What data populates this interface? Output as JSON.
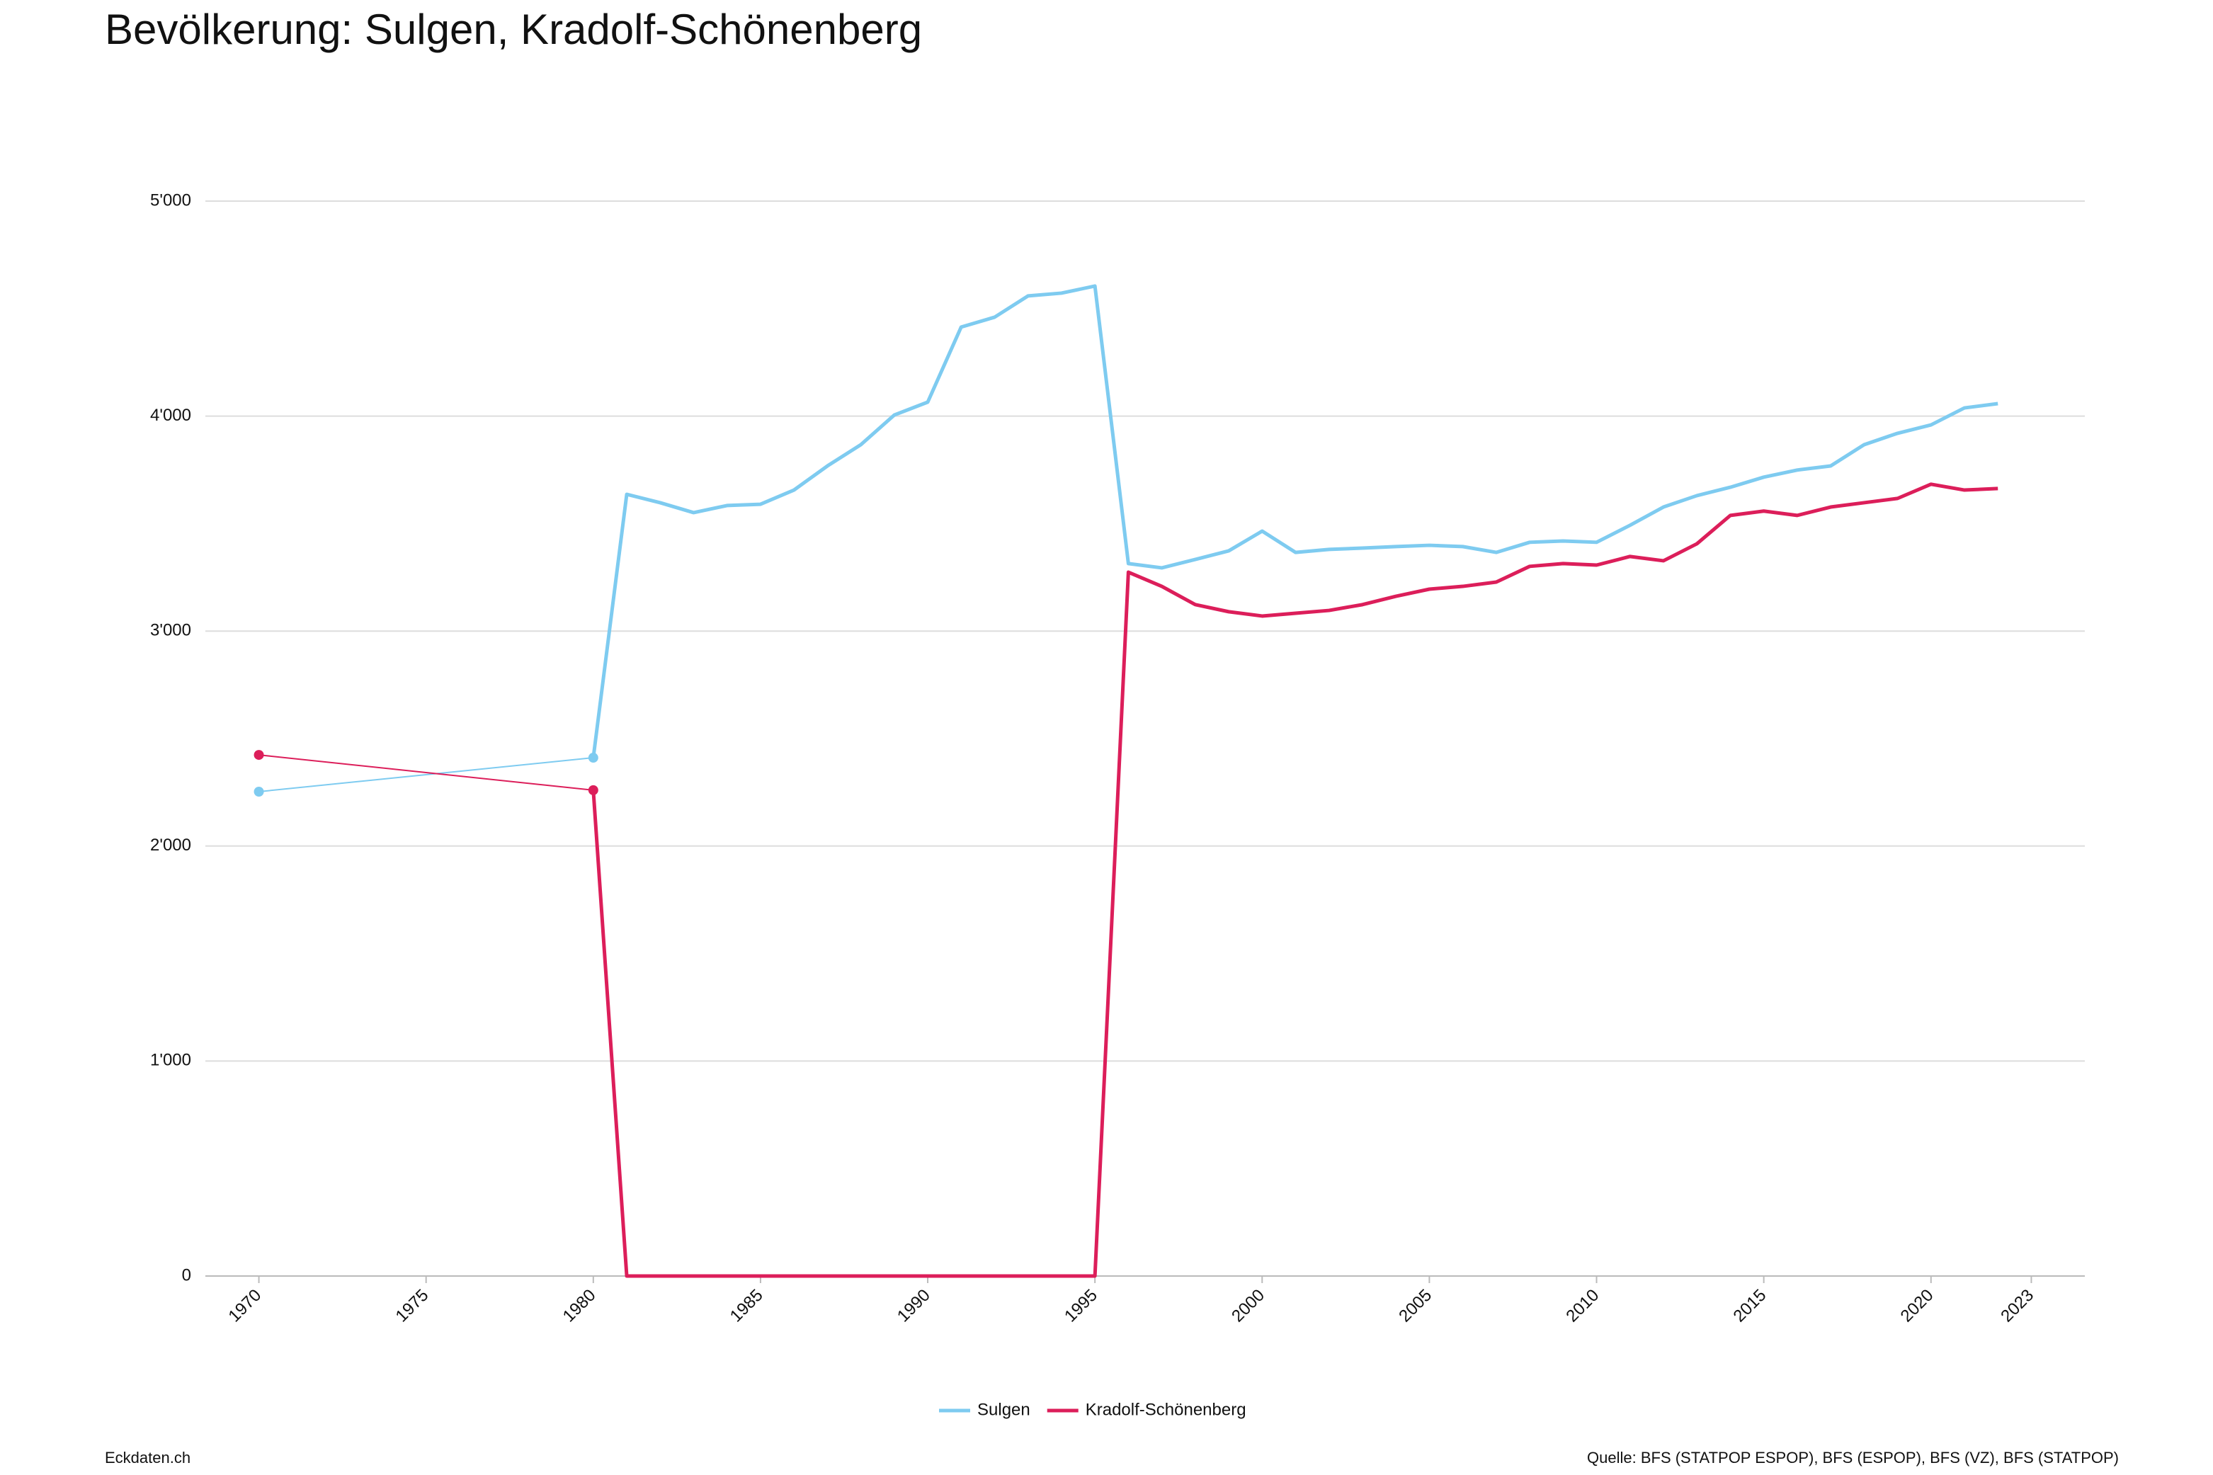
{
  "chart_data": {
    "type": "line",
    "title": "Bevölkerung: Sulgen, Kradolf-Schönenberg",
    "x": [
      1970,
      1980,
      1981,
      1982,
      1983,
      1984,
      1985,
      1986,
      1987,
      1988,
      1989,
      1990,
      1991,
      1992,
      1993,
      1994,
      1995,
      1996,
      1997,
      1998,
      1999,
      2000,
      2001,
      2002,
      2003,
      2004,
      2005,
      2006,
      2007,
      2008,
      2009,
      2010,
      2011,
      2012,
      2013,
      2014,
      2015,
      2016,
      2017,
      2018,
      2019,
      2020,
      2021,
      2022
    ],
    "series": [
      {
        "name": "Sulgen",
        "color": "#7ecbf0",
        "values": [
          2253,
          2411,
          3636,
          3597,
          3551,
          3584,
          3590,
          3656,
          3768,
          3867,
          4005,
          4065,
          4414,
          4460,
          4559,
          4572,
          4605,
          3314,
          3294,
          3333,
          3373,
          3465,
          3366,
          3380,
          3386,
          3393,
          3399,
          3393,
          3366,
          3413,
          3419,
          3413,
          3492,
          3577,
          3630,
          3669,
          3716,
          3749,
          3768,
          3867,
          3920,
          3959,
          4038,
          4058
        ]
      },
      {
        "name": "Kradolf-Schönenberg",
        "color": "#dc1e5a",
        "values": [
          2424,
          2260,
          0,
          0,
          0,
          0,
          0,
          0,
          0,
          0,
          0,
          0,
          0,
          0,
          0,
          0,
          0,
          3274,
          3208,
          3123,
          3090,
          3070,
          3083,
          3096,
          3123,
          3162,
          3195,
          3208,
          3228,
          3301,
          3314,
          3307,
          3347,
          3327,
          3406,
          3538,
          3558,
          3538,
          3577,
          3597,
          3617,
          3683,
          3656,
          3663
        ]
      }
    ],
    "xlim": [
      1968.4,
      2024.6
    ],
    "xticks": [
      1970,
      1975,
      1980,
      1985,
      1990,
      1995,
      2000,
      2005,
      2010,
      2015,
      2020,
      2023
    ],
    "ylim": [
      0,
      5000
    ],
    "yticks": [
      0,
      {
        "value": 1000,
        "label": "1'000"
      },
      {
        "value": 2000,
        "label": "2'000"
      },
      {
        "value": 3000,
        "label": "3'000"
      },
      {
        "value": 4000,
        "label": "4'000"
      },
      {
        "value": 5000,
        "label": "5'000"
      }
    ],
    "grid": true,
    "legend": "bottom",
    "footer": "Eckdaten.ch",
    "source": "Quelle: BFS (STATPOP ESPOP), BFS (ESPOP), BFS (VZ), BFS (STATPOP)"
  }
}
